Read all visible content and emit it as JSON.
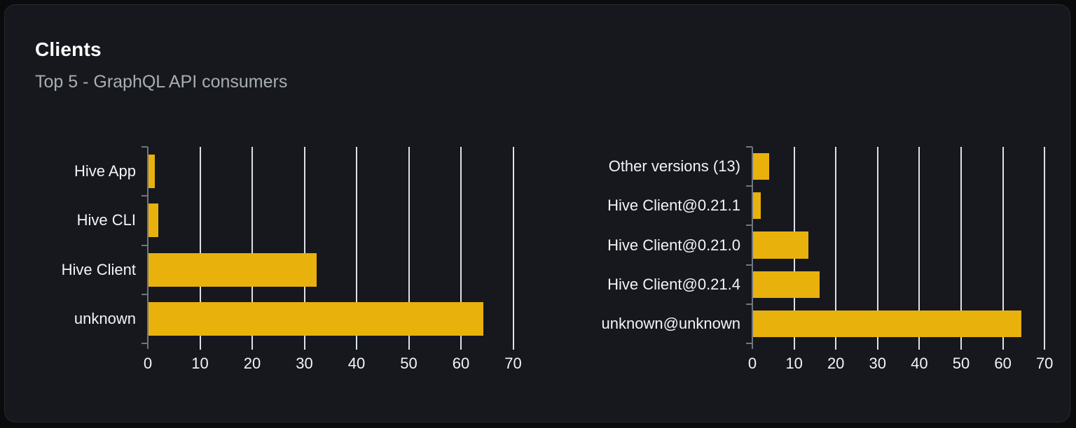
{
  "card": {
    "title": "Clients",
    "subtitle": "Top 5 - GraphQL API consumers"
  },
  "colors": {
    "page_background": "#0a0b0d",
    "card_background": "#16181d",
    "card_border": "#26292f",
    "title_text": "#ffffff",
    "subtitle_text": "#a8aeb6",
    "bar_fill": "#e9b10c",
    "gridline": "#dde1e7",
    "axis": "#70757e",
    "label_text": "#f3f4f6"
  },
  "chart_data": [
    {
      "type": "bar",
      "orientation": "horizontal",
      "name": "clients-by-name",
      "categories_order": "top-to-bottom",
      "categories": [
        "Hive App",
        "Hive CLI",
        "Hive Client",
        "unknown"
      ],
      "values": [
        1.2,
        1.9,
        32.2,
        64.2
      ],
      "xticks": [
        0,
        10,
        20,
        30,
        40,
        50,
        60,
        70
      ],
      "xlim": [
        0,
        70
      ],
      "grid": "vertical-lines",
      "legend": "none",
      "title": "",
      "xlabel": "",
      "ylabel": ""
    },
    {
      "type": "bar",
      "orientation": "horizontal",
      "name": "clients-by-version",
      "categories_order": "top-to-bottom",
      "categories": [
        "Other versions (13)",
        "Hive Client@0.21.1",
        "Hive Client@0.21.0",
        "Hive Client@0.21.4",
        "unknown@unknown"
      ],
      "values": [
        3.8,
        1.9,
        13.3,
        16.0,
        64.2
      ],
      "xticks": [
        0,
        10,
        20,
        30,
        40,
        50,
        60,
        70
      ],
      "xlim": [
        0,
        70
      ],
      "grid": "vertical-lines",
      "legend": "none",
      "title": "",
      "xlabel": "",
      "ylabel": ""
    }
  ]
}
